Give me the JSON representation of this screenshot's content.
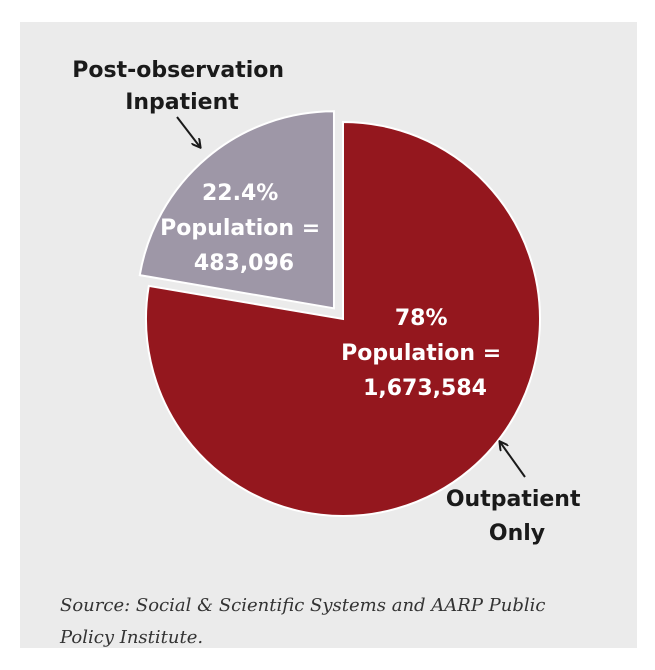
{
  "chart_data": {
    "type": "pie",
    "slices": [
      {
        "key": "inpatient",
        "category": "Post-observation Inpatient",
        "category_lines": [
          "Post-observation",
          "Inpatient"
        ],
        "percent": 22.4,
        "population": 483096,
        "value_lines": [
          "22.4%",
          "Population =",
          "483,096"
        ],
        "color": "#9e97a7",
        "exploded": true
      },
      {
        "key": "outpatient",
        "category": "Outpatient Only",
        "category_lines": [
          "Outpatient",
          "Only"
        ],
        "percent": 78,
        "population": 1673584,
        "value_lines": [
          "78%",
          "Population =",
          "1,673,584"
        ],
        "color": "#94171e",
        "exploded": false
      }
    ]
  },
  "source": "Source: Social & Scientific Systems and AARP Public Policy Institute."
}
